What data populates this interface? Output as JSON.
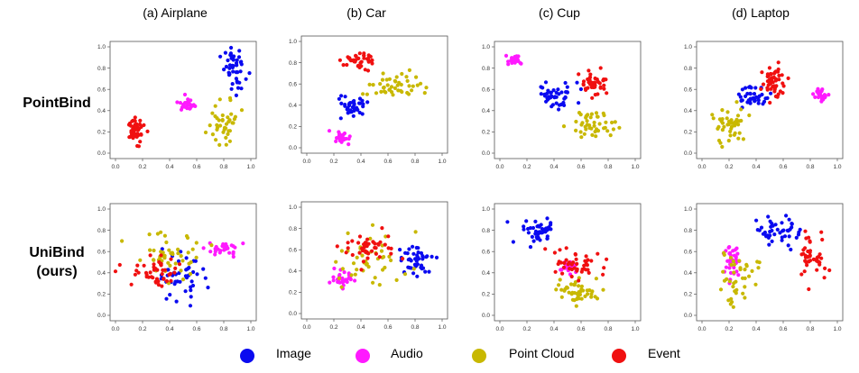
{
  "columns": [
    "(a) Airplane",
    "(b) Car",
    "(c) Cup",
    "(d) Laptop"
  ],
  "rows": [
    "PointBind",
    "UniBind\n(ours)"
  ],
  "legend": [
    {
      "label": "Image",
      "color": "#0a0af0"
    },
    {
      "label": "Audio",
      "color": "#ff1aff"
    },
    {
      "label": "Point Cloud",
      "color": "#c8b800"
    },
    {
      "label": "Event",
      "color": "#f01010"
    }
  ],
  "chart_data": {
    "type": "scatter",
    "tick_labels": [
      "0.0",
      "0.2",
      "0.4",
      "0.6",
      "0.8",
      "1.0"
    ],
    "xlim": [
      0,
      1
    ],
    "ylim": [
      0,
      1
    ],
    "series_names": [
      "Image",
      "Audio",
      "Point Cloud",
      "Event"
    ],
    "points_per_cluster": 35,
    "panels": [
      {
        "row": "PointBind",
        "column": "(a) Airplane",
        "clusters": [
          {
            "series": "Image",
            "center": [
              0.88,
              0.78
            ],
            "spread": [
              0.07,
              0.18
            ],
            "n": 45
          },
          {
            "series": "Audio",
            "center": [
              0.53,
              0.46
            ],
            "spread": [
              0.05,
              0.05
            ],
            "n": 25
          },
          {
            "series": "Point Cloud",
            "center": [
              0.8,
              0.3
            ],
            "spread": [
              0.1,
              0.16
            ],
            "n": 40
          },
          {
            "series": "Event",
            "center": [
              0.15,
              0.22
            ],
            "spread": [
              0.07,
              0.1
            ],
            "n": 50
          }
        ]
      },
      {
        "row": "PointBind",
        "column": "(b) Car",
        "clusters": [
          {
            "series": "Image",
            "center": [
              0.33,
              0.38
            ],
            "spread": [
              0.1,
              0.08
            ],
            "n": 40
          },
          {
            "series": "Audio",
            "center": [
              0.25,
              0.08
            ],
            "spread": [
              0.05,
              0.05
            ],
            "n": 25
          },
          {
            "series": "Point Cloud",
            "center": [
              0.65,
              0.58
            ],
            "spread": [
              0.16,
              0.1
            ],
            "n": 45
          },
          {
            "series": "Event",
            "center": [
              0.38,
              0.82
            ],
            "spread": [
              0.09,
              0.08
            ],
            "n": 40
          }
        ]
      },
      {
        "row": "PointBind",
        "column": "(c) Cup",
        "clusters": [
          {
            "series": "Image",
            "center": [
              0.42,
              0.55
            ],
            "spread": [
              0.12,
              0.1
            ],
            "n": 45
          },
          {
            "series": "Audio",
            "center": [
              0.1,
              0.88
            ],
            "spread": [
              0.05,
              0.05
            ],
            "n": 20
          },
          {
            "series": "Point Cloud",
            "center": [
              0.68,
              0.25
            ],
            "spread": [
              0.14,
              0.12
            ],
            "n": 45
          },
          {
            "series": "Event",
            "center": [
              0.7,
              0.65
            ],
            "spread": [
              0.1,
              0.1
            ],
            "n": 45
          }
        ]
      },
      {
        "row": "PointBind",
        "column": "(d) Laptop",
        "clusters": [
          {
            "series": "Image",
            "center": [
              0.38,
              0.52
            ],
            "spread": [
              0.1,
              0.08
            ],
            "n": 40
          },
          {
            "series": "Audio",
            "center": [
              0.88,
              0.55
            ],
            "spread": [
              0.05,
              0.05
            ],
            "n": 25
          },
          {
            "series": "Point Cloud",
            "center": [
              0.2,
              0.28
            ],
            "spread": [
              0.12,
              0.14
            ],
            "n": 45
          },
          {
            "series": "Event",
            "center": [
              0.52,
              0.68
            ],
            "spread": [
              0.08,
              0.12
            ],
            "n": 50
          }
        ]
      },
      {
        "row": "UniBind (ours)",
        "column": "(a) Airplane",
        "clusters": [
          {
            "series": "Image",
            "center": [
              0.5,
              0.35
            ],
            "spread": [
              0.18,
              0.15
            ],
            "n": 45
          },
          {
            "series": "Audio",
            "center": [
              0.8,
              0.62
            ],
            "spread": [
              0.1,
              0.06
            ],
            "n": 30
          },
          {
            "series": "Point Cloud",
            "center": [
              0.4,
              0.55
            ],
            "spread": [
              0.22,
              0.2
            ],
            "n": 50
          },
          {
            "series": "Event",
            "center": [
              0.3,
              0.4
            ],
            "spread": [
              0.2,
              0.15
            ],
            "n": 45
          }
        ]
      },
      {
        "row": "UniBind (ours)",
        "column": "(b) Car",
        "clusters": [
          {
            "series": "Image",
            "center": [
              0.8,
              0.5
            ],
            "spread": [
              0.1,
              0.12
            ],
            "n": 45
          },
          {
            "series": "Audio",
            "center": [
              0.25,
              0.32
            ],
            "spread": [
              0.07,
              0.06
            ],
            "n": 30
          },
          {
            "series": "Point Cloud",
            "center": [
              0.45,
              0.5
            ],
            "spread": [
              0.2,
              0.22
            ],
            "n": 45
          },
          {
            "series": "Event",
            "center": [
              0.45,
              0.62
            ],
            "spread": [
              0.15,
              0.15
            ],
            "n": 45
          }
        ]
      },
      {
        "row": "UniBind (ours)",
        "column": "(c) Cup",
        "clusters": [
          {
            "series": "Image",
            "center": [
              0.3,
              0.8
            ],
            "spread": [
              0.12,
              0.1
            ],
            "n": 45
          },
          {
            "series": "Audio",
            "center": [
              0.5,
              0.45
            ],
            "spread": [
              0.05,
              0.05
            ],
            "n": 30
          },
          {
            "series": "Point Cloud",
            "center": [
              0.55,
              0.22
            ],
            "spread": [
              0.15,
              0.12
            ],
            "n": 45
          },
          {
            "series": "Event",
            "center": [
              0.55,
              0.5
            ],
            "spread": [
              0.2,
              0.12
            ],
            "n": 45
          }
        ]
      },
      {
        "row": "UniBind (ours)",
        "column": "(d) Laptop",
        "clusters": [
          {
            "series": "Image",
            "center": [
              0.55,
              0.78
            ],
            "spread": [
              0.15,
              0.1
            ],
            "n": 45
          },
          {
            "series": "Audio",
            "center": [
              0.22,
              0.52
            ],
            "spread": [
              0.05,
              0.15
            ],
            "n": 35
          },
          {
            "series": "Point Cloud",
            "center": [
              0.25,
              0.35
            ],
            "spread": [
              0.12,
              0.2
            ],
            "n": 40
          },
          {
            "series": "Event",
            "center": [
              0.82,
              0.55
            ],
            "spread": [
              0.08,
              0.18
            ],
            "n": 45
          }
        ]
      }
    ]
  }
}
